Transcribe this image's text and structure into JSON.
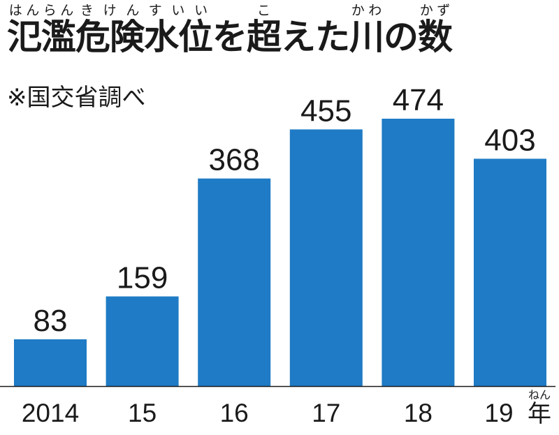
{
  "title_segments": [
    {
      "text": "氾濫",
      "ruby": "はんらん"
    },
    {
      "text": "危険水位",
      "ruby": "きけんすいい"
    },
    {
      "text": "を",
      "ruby": ""
    },
    {
      "text": "超",
      "ruby": "こ"
    },
    {
      "text": "えた",
      "ruby": ""
    },
    {
      "text": "川",
      "ruby": "かわ"
    },
    {
      "text": "の",
      "ruby": ""
    },
    {
      "text": "数",
      "ruby": "かず"
    }
  ],
  "source": "※国交省調べ",
  "chart_data": {
    "type": "bar",
    "title": "氾濫危険水位を超えた川の数",
    "categories": [
      "2014",
      "15",
      "16",
      "17",
      "18",
      "19"
    ],
    "values": [
      83,
      159,
      368,
      455,
      474,
      403
    ],
    "unit_label": "年",
    "unit_ruby": "ねん",
    "ylim": [
      0,
      500
    ],
    "grid": false,
    "bar_color": "#1f7bc5"
  }
}
